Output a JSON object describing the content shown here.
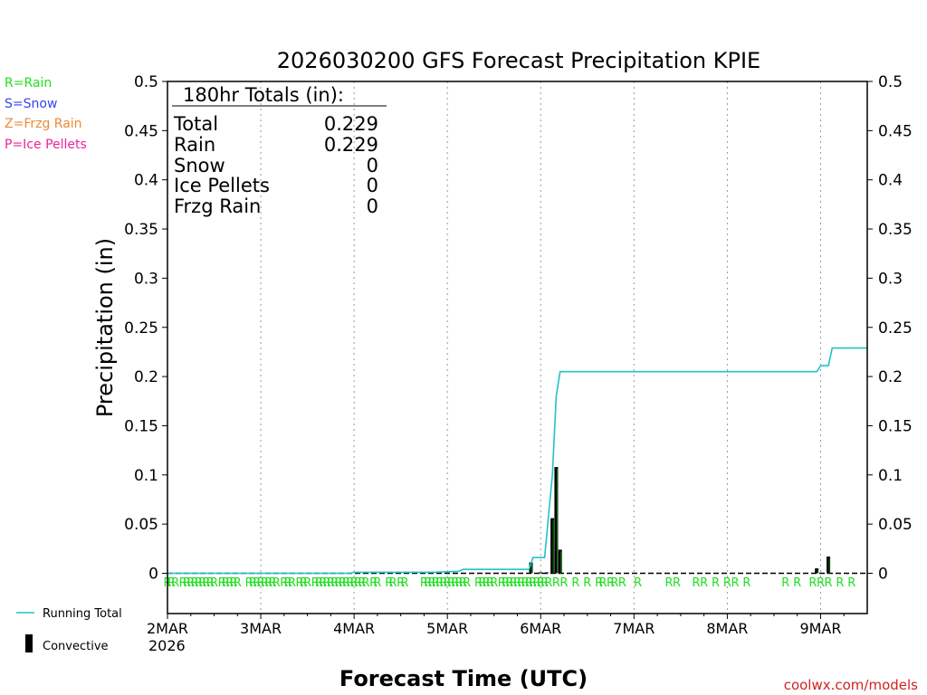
{
  "chart_data": {
    "type": "bar",
    "title": "2026030200 GFS Forecast Precipitation KPIE",
    "xlabel": "Forecast Time (UTC)",
    "ylabel": "Precipitation (in)",
    "ylim": [
      0,
      0.5
    ],
    "xlim_hours": [
      0,
      180
    ],
    "y_ticks": [
      "0",
      "0.05",
      "0.1",
      "0.15",
      "0.2",
      "0.25",
      "0.3",
      "0.35",
      "0.4",
      "0.45",
      "0.5"
    ],
    "y_tick_values": [
      0,
      0.05,
      0.1,
      0.15,
      0.2,
      0.25,
      0.3,
      0.35,
      0.4,
      0.45,
      0.5
    ],
    "x_ticks": [
      {
        "label": "2MAR",
        "hour": 0
      },
      {
        "label": "3MAR",
        "hour": 24
      },
      {
        "label": "4MAR",
        "hour": 48
      },
      {
        "label": "5MAR",
        "hour": 72
      },
      {
        "label": "6MAR",
        "hour": 96
      },
      {
        "label": "7MAR",
        "hour": 120
      },
      {
        "label": "8MAR",
        "hour": 144
      },
      {
        "label": "9MAR",
        "hour": 168
      }
    ],
    "year_label": "2026",
    "ptype_legend": [
      {
        "label": "R=Rain",
        "color": "#22dd22"
      },
      {
        "label": "S=Snow",
        "color": "#3344ee"
      },
      {
        "label": "Z=Frzg Rain",
        "color": "#ee8833"
      },
      {
        "label": "P=Ice Pellets",
        "color": "#ee2299"
      }
    ],
    "totals": {
      "heading": "180hr Totals (in):",
      "rows": [
        {
          "label": "Total",
          "value": "0.229"
        },
        {
          "label": "Rain",
          "value": "0.229"
        },
        {
          "label": "Snow",
          "value": "0"
        },
        {
          "label": "Ice Pellets",
          "value": "0"
        },
        {
          "label": "Frzg Rain",
          "value": "0"
        }
      ]
    },
    "series": [
      {
        "name": "Running Total",
        "color": "#22c4c4",
        "points": [
          [
            0,
            0
          ],
          [
            47,
            0
          ],
          [
            48,
            0.001
          ],
          [
            68,
            0.001
          ],
          [
            75,
            0.002
          ],
          [
            76,
            0.004
          ],
          [
            93,
            0.004
          ],
          [
            94,
            0.016
          ],
          [
            97,
            0.016
          ],
          [
            99,
            0.1
          ],
          [
            100,
            0.18
          ],
          [
            101,
            0.205
          ],
          [
            167,
            0.205
          ],
          [
            168,
            0.211
          ],
          [
            170,
            0.211
          ],
          [
            171,
            0.229
          ],
          [
            180,
            0.229
          ]
        ]
      },
      {
        "name": "Convective",
        "color": "#000000",
        "bars": [
          {
            "hour": 93.5,
            "value": 0.011
          },
          {
            "hour": 96.0,
            "value": 0.001
          },
          {
            "hour": 97.5,
            "value": 0.001
          },
          {
            "hour": 99.0,
            "value": 0.056
          },
          {
            "hour": 100.0,
            "value": 0.108
          },
          {
            "hour": 101.0,
            "value": 0.024
          },
          {
            "hour": 167.0,
            "value": 0.005
          },
          {
            "hour": 170.0,
            "value": 0.017
          }
        ]
      }
    ],
    "ptype_marks": {
      "symbol": "R",
      "color": "#22dd22",
      "hours": [
        0,
        1,
        2,
        4,
        5,
        6,
        7,
        8,
        9,
        10,
        11,
        12,
        14,
        15,
        16,
        17,
        18,
        21,
        22,
        23,
        24,
        25,
        26,
        27,
        28,
        30,
        31,
        32,
        34,
        35,
        36,
        38,
        39,
        40,
        41,
        42,
        43,
        44,
        45,
        46,
        47,
        48,
        49,
        50,
        51,
        53,
        54,
        57,
        58,
        60,
        61,
        66,
        67,
        68,
        69,
        70,
        71,
        72,
        73,
        74,
        75,
        76,
        77,
        80,
        81,
        82,
        83,
        84,
        86,
        87,
        88,
        89,
        90,
        91,
        92,
        93,
        94,
        95,
        96,
        97,
        98,
        100,
        102,
        105,
        108,
        111,
        112,
        114,
        115,
        117,
        121,
        129,
        131,
        136,
        138,
        141,
        144,
        146,
        149,
        159,
        162,
        166,
        168,
        170,
        173,
        176
      ]
    }
  },
  "legend": {
    "running_total_label": "Running Total",
    "convective_label": "Convective"
  },
  "footer": {
    "credit": "coolwx.com/models"
  }
}
